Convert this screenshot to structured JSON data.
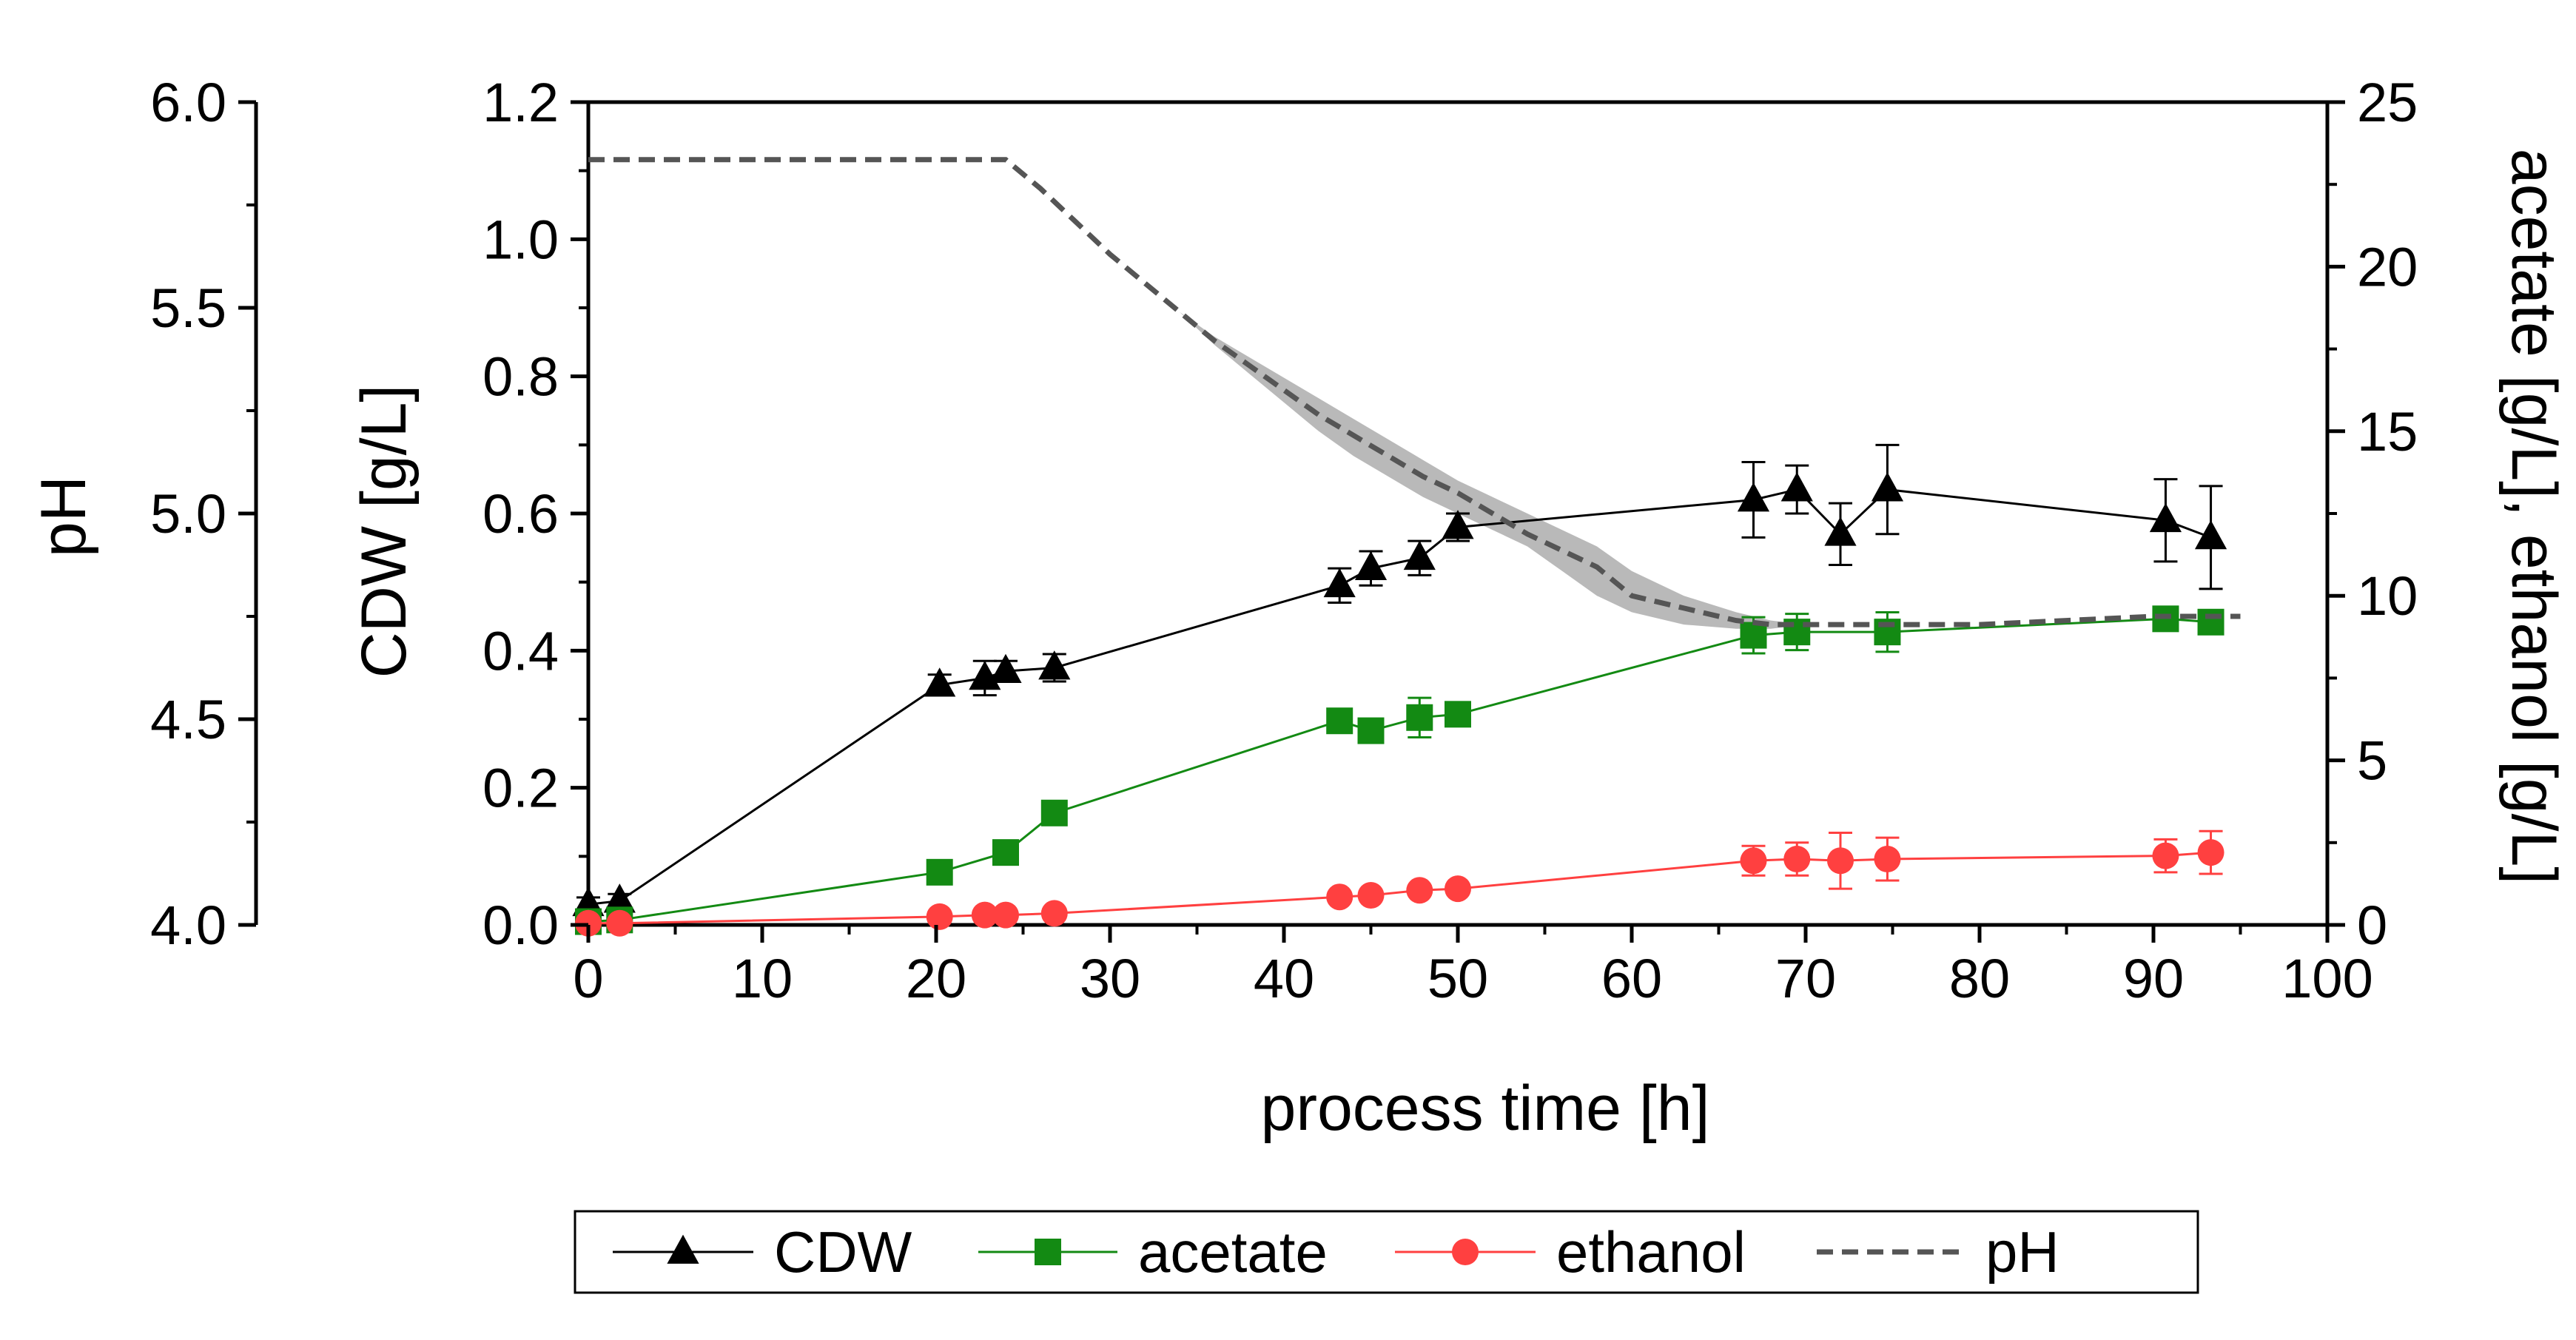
{
  "chart_data": {
    "type": "line",
    "xlabel": "process time [h]",
    "xlim": [
      0,
      100
    ],
    "xticks": [
      0,
      10,
      20,
      30,
      40,
      50,
      60,
      70,
      80,
      90,
      100
    ],
    "axes": {
      "ph": {
        "label": "pH",
        "ylim": [
          4.0,
          6.0
        ],
        "ticks": [
          "4.0",
          "4.5",
          "5.0",
          "5.5",
          "6.0"
        ]
      },
      "cdw": {
        "label": "CDW [g/L]",
        "ylim": [
          0.0,
          1.2
        ],
        "ticks": [
          "0.0",
          "0.2",
          "0.4",
          "0.6",
          "0.8",
          "1.0",
          "1.2"
        ]
      },
      "right": {
        "label": "acetate [g/L], ethanol [g/L]",
        "ylim": [
          0,
          25
        ],
        "ticks": [
          "0",
          "5",
          "10",
          "15",
          "20",
          "25"
        ]
      }
    },
    "series": [
      {
        "name": "CDW",
        "axis": "cdw",
        "marker": "triangle",
        "color": "#000000",
        "x": [
          0,
          1.8,
          20.2,
          22.8,
          24,
          26.8,
          43.2,
          45,
          47.8,
          50,
          67,
          69.5,
          72,
          74.7,
          90.7,
          93.3
        ],
        "y": [
          0.03,
          0.035,
          0.35,
          0.36,
          0.37,
          0.375,
          0.495,
          0.52,
          0.535,
          0.58,
          0.62,
          0.635,
          0.57,
          0.635,
          0.59,
          0.565
        ],
        "err": [
          0.01,
          0.01,
          0.015,
          0.025,
          0.015,
          0.02,
          0.025,
          0.025,
          0.025,
          0.02,
          0.055,
          0.035,
          0.045,
          0.065,
          0.06,
          0.075
        ]
      },
      {
        "name": "acetate",
        "axis": "right",
        "marker": "square",
        "color": "#138a13",
        "x": [
          0,
          1.8,
          20.2,
          24,
          26.8,
          43.2,
          45,
          47.8,
          50,
          67,
          69.5,
          74.7,
          90.7,
          93.3
        ],
        "y": [
          0.1,
          0.15,
          1.6,
          2.2,
          3.4,
          6.2,
          5.9,
          6.3,
          6.4,
          8.8,
          8.9,
          8.9,
          9.3,
          9.2
        ],
        "err": [
          0.05,
          0.05,
          0.15,
          0.2,
          0.2,
          0.25,
          0.35,
          0.6,
          0.3,
          0.55,
          0.55,
          0.6,
          0.3,
          0.35
        ]
      },
      {
        "name": "ethanol",
        "axis": "right",
        "marker": "circle",
        "color": "#ff4040",
        "x": [
          0,
          1.8,
          20.2,
          22.8,
          24,
          26.8,
          43.2,
          45,
          47.8,
          50,
          67,
          69.5,
          72,
          74.7,
          90.7,
          93.3
        ],
        "y": [
          0.05,
          0.05,
          0.25,
          0.3,
          0.3,
          0.35,
          0.85,
          0.9,
          1.05,
          1.1,
          1.95,
          2.0,
          1.95,
          2.0,
          2.1,
          2.2
        ],
        "err": [
          0.02,
          0.02,
          0.05,
          0.05,
          0.05,
          0.05,
          0.1,
          0.1,
          0.1,
          0.1,
          0.45,
          0.5,
          0.85,
          0.65,
          0.5,
          0.65
        ]
      },
      {
        "name": "pH",
        "axis": "ph",
        "style": "dashed",
        "color": "#555555",
        "band_color": "#b9b9b9",
        "x": [
          0,
          24,
          26,
          28,
          30,
          32,
          34,
          36,
          38,
          40,
          42,
          44,
          46,
          48,
          50,
          52,
          54,
          56,
          58,
          60,
          63,
          66,
          68,
          70,
          75,
          80,
          85,
          90,
          95
        ],
        "y": [
          5.86,
          5.86,
          5.79,
          5.71,
          5.63,
          5.56,
          5.49,
          5.42,
          5.36,
          5.3,
          5.24,
          5.19,
          5.14,
          5.09,
          5.05,
          5.0,
          4.95,
          4.91,
          4.87,
          4.8,
          4.77,
          4.74,
          4.73,
          4.73,
          4.73,
          4.73,
          4.74,
          4.75,
          4.75
        ],
        "y_upper": [
          5.86,
          5.86,
          5.79,
          5.71,
          5.63,
          5.56,
          5.49,
          5.43,
          5.38,
          5.33,
          5.28,
          5.23,
          5.18,
          5.13,
          5.08,
          5.04,
          5.0,
          4.96,
          4.92,
          4.86,
          4.8,
          4.76,
          4.74,
          4.73,
          4.73,
          4.73,
          4.74,
          4.75,
          4.75
        ],
        "y_lower": [
          5.86,
          5.86,
          5.79,
          5.71,
          5.63,
          5.56,
          5.49,
          5.41,
          5.34,
          5.27,
          5.2,
          5.14,
          5.09,
          5.04,
          5.0,
          4.96,
          4.92,
          4.86,
          4.8,
          4.76,
          4.73,
          4.72,
          4.72,
          4.73,
          4.73,
          4.73,
          4.74,
          4.75,
          4.75
        ]
      }
    ],
    "legend": {
      "position": "bottom",
      "entries": [
        "CDW",
        "acetate",
        "ethanol",
        "pH"
      ]
    },
    "grid": false
  }
}
